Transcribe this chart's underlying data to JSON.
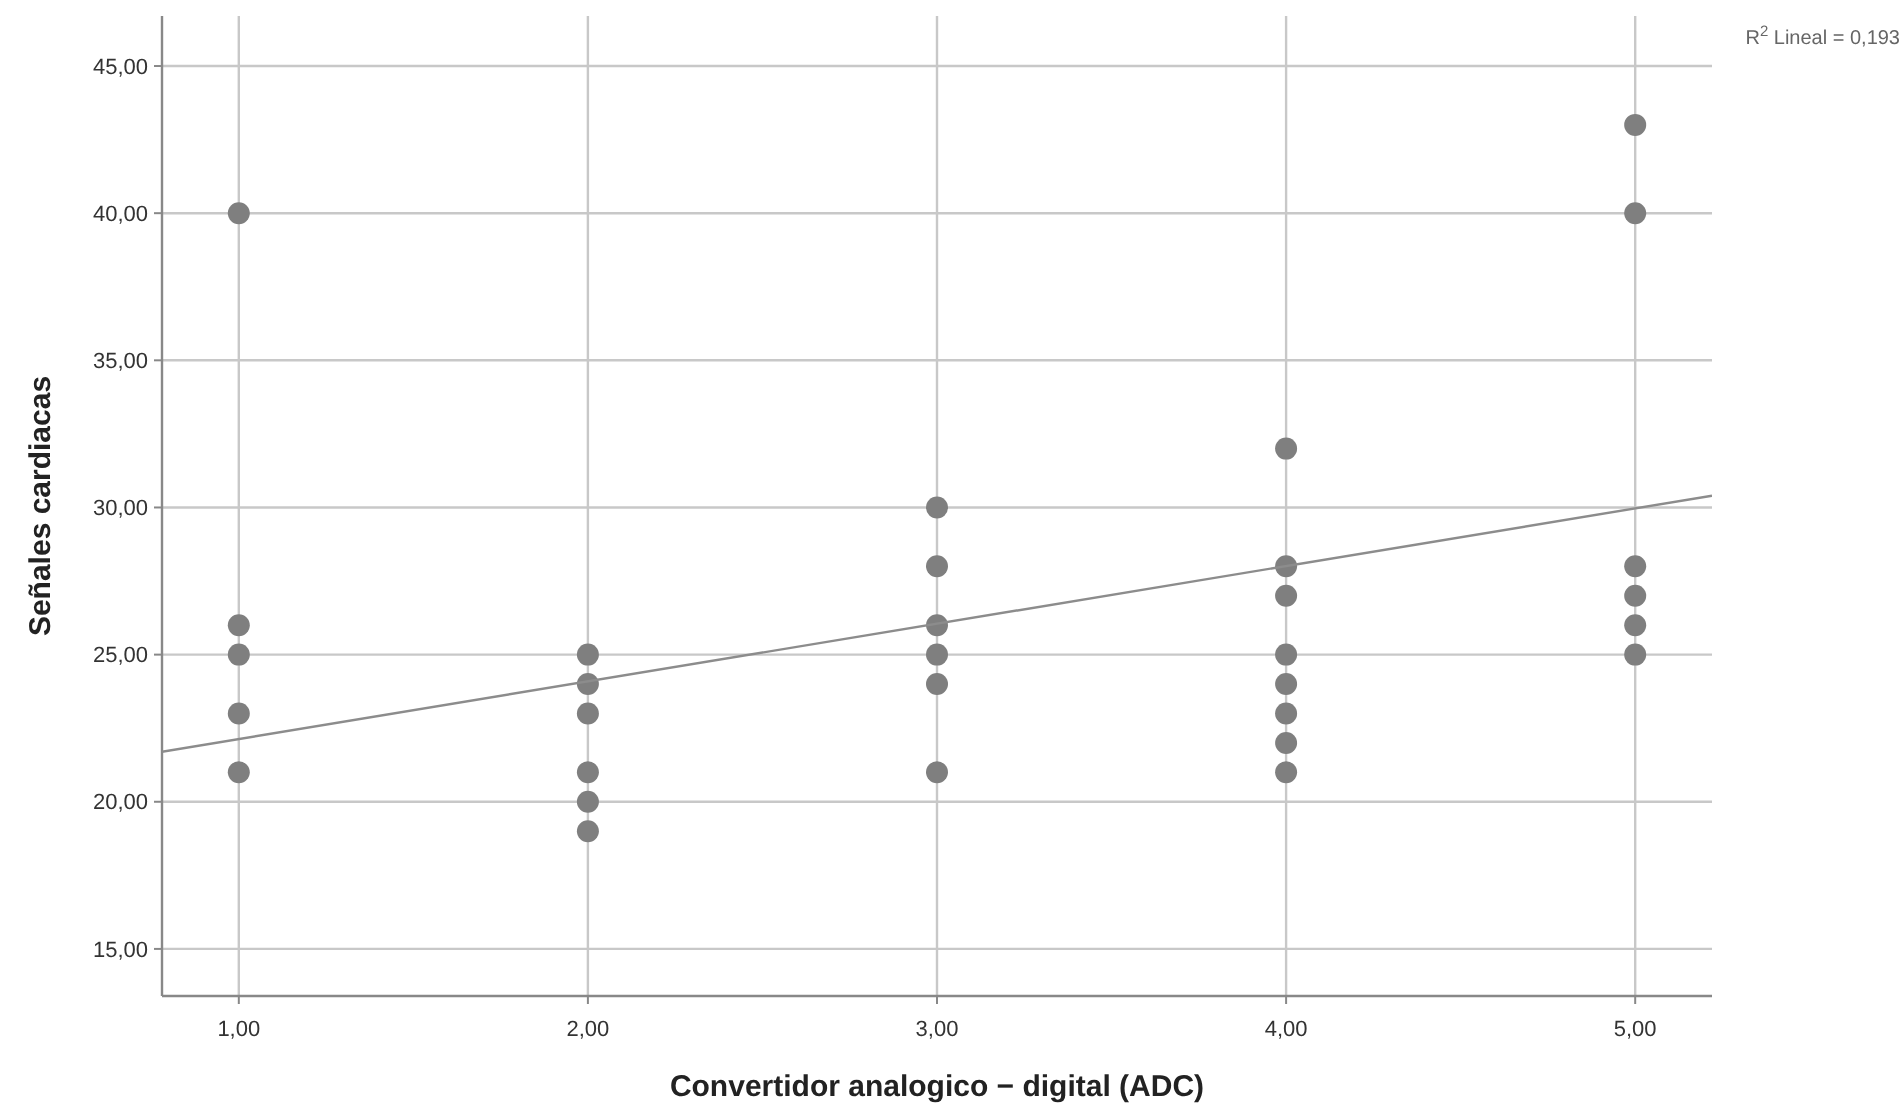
{
  "chart_data": {
    "type": "scatter",
    "xlabel": "Convertidor analogico − digital (ADC)",
    "ylabel": "Señales cardiacas",
    "annotations": [
      "R$^{2}$ Lineal = 0,193"
    ],
    "xlim": [
      0.78,
      5.22
    ],
    "ylim": [
      13.4,
      46.7
    ],
    "xticks": [
      {
        "value": 1,
        "label": "1,00"
      },
      {
        "value": 2,
        "label": "2,00"
      },
      {
        "value": 3,
        "label": "3,00"
      },
      {
        "value": 4,
        "label": "4,00"
      },
      {
        "value": 5,
        "label": "5,00"
      }
    ],
    "yticks": [
      {
        "value": 15,
        "label": "15,00"
      },
      {
        "value": 20,
        "label": "20,00"
      },
      {
        "value": 25,
        "label": "25,00"
      },
      {
        "value": 30,
        "label": "30,00"
      },
      {
        "value": 35,
        "label": "35,00"
      },
      {
        "value": 40,
        "label": "40,00"
      },
      {
        "value": 45,
        "label": "45,00"
      }
    ],
    "grid": true,
    "series": [
      {
        "marker": "circle",
        "color": "#7f7f7f",
        "x": [
          1,
          1,
          1,
          1,
          1,
          2,
          2,
          2,
          2,
          2,
          2,
          3,
          3,
          3,
          3,
          3,
          3,
          4,
          4,
          4,
          4,
          4,
          4,
          4,
          4,
          5,
          5,
          5,
          5,
          5,
          5
        ],
        "values": [
          40,
          26,
          25,
          23,
          21,
          25,
          24,
          23,
          21,
          20,
          19,
          30,
          28,
          26,
          25,
          24,
          21,
          32,
          28,
          27,
          25,
          24,
          23,
          22,
          21,
          43,
          40,
          28,
          27,
          26,
          25
        ]
      },
      {
        "type": "line",
        "marker": "none",
        "line_style": "solid",
        "color": "#8c8c8c",
        "x": [
          0.78,
          5.22
        ],
        "values": [
          21.7,
          30.4
        ]
      }
    ]
  }
}
